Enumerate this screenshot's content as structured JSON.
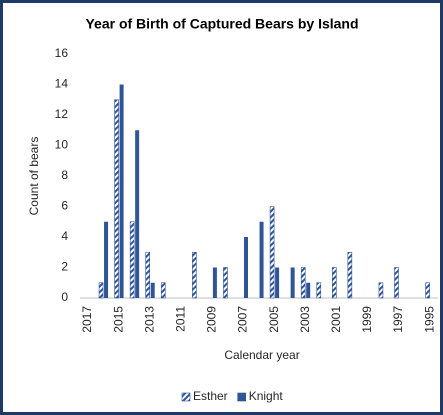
{
  "chart_data": {
    "type": "bar",
    "title": "Year of Birth of Captured Bears by Island",
    "x_label": "Calendar year",
    "y_label": "Count of bears",
    "categories": [
      "2017",
      null,
      "2015",
      null,
      "2013",
      null,
      "2011",
      null,
      "2009",
      null,
      "2007",
      null,
      "2005",
      null,
      "2003",
      null,
      "2001",
      null,
      "1999",
      null,
      "1997",
      null,
      "1995"
    ],
    "series": [
      {
        "name": "Esther",
        "color": "#2f5597",
        "pattern": "diagonal-stripes",
        "values": [
          0,
          1,
          13,
          5,
          3,
          1,
          0,
          3,
          0,
          2,
          0,
          0,
          6,
          0,
          2,
          1,
          2,
          3,
          0,
          1,
          2,
          0,
          1
        ]
      },
      {
        "name": "Knight",
        "color": "#2f5597",
        "values": [
          0,
          5,
          14,
          11,
          1,
          0,
          0,
          0,
          2,
          0,
          4,
          5,
          2,
          2,
          1,
          0,
          0,
          0,
          0,
          0,
          0,
          0,
          0
        ]
      }
    ],
    "ylim": [
      0,
      16
    ],
    "yticks": [
      0,
      2,
      4,
      6,
      8,
      10,
      12,
      14,
      16
    ],
    "grid": false,
    "legend": "bottom"
  }
}
